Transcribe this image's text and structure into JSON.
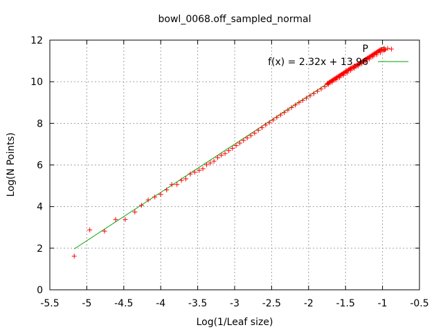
{
  "chart_data": {
    "type": "scatter",
    "title": "bowl_0068.off_sampled_normal",
    "xlabel": "Log(1/Leaf size)",
    "ylabel": "Log(N Points)",
    "xlim": [
      -5.5,
      -0.5
    ],
    "ylim": [
      0,
      12
    ],
    "xticks": [
      "-5.5",
      "-5",
      "-4.5",
      "-4",
      "-3.5",
      "-3",
      "-2.5",
      "-2",
      "-1.5",
      "-1",
      "-0.5"
    ],
    "yticks": [
      "0",
      "2",
      "4",
      "6",
      "8",
      "10",
      "12"
    ],
    "grid": true,
    "legend_position": "top-right",
    "series": [
      {
        "name": "P",
        "kind": "points",
        "marker": "plus",
        "color": "#ff0000",
        "points": [
          [
            -5.17,
            1.62
          ],
          [
            -4.96,
            2.88
          ],
          [
            -4.76,
            2.82
          ],
          [
            -4.61,
            3.38
          ],
          [
            -4.48,
            3.38
          ],
          [
            -4.35,
            3.74
          ],
          [
            -4.26,
            4.06
          ],
          [
            -4.17,
            4.32
          ],
          [
            -4.08,
            4.46
          ],
          [
            -4.0,
            4.58
          ],
          [
            -3.92,
            4.8
          ],
          [
            -3.85,
            5.06
          ],
          [
            -3.78,
            5.06
          ],
          [
            -3.72,
            5.26
          ],
          [
            -3.66,
            5.33
          ],
          [
            -3.6,
            5.56
          ],
          [
            -3.54,
            5.65
          ],
          [
            -3.48,
            5.74
          ],
          [
            -3.43,
            5.82
          ],
          [
            -3.38,
            6.01
          ],
          [
            -3.33,
            6.09
          ],
          [
            -3.28,
            6.18
          ],
          [
            -3.23,
            6.35
          ],
          [
            -3.18,
            6.47
          ],
          [
            -3.13,
            6.55
          ],
          [
            -3.08,
            6.69
          ],
          [
            -3.03,
            6.8
          ],
          [
            -2.98,
            6.93
          ],
          [
            -2.93,
            7.05
          ],
          [
            -2.88,
            7.18
          ],
          [
            -2.83,
            7.3
          ],
          [
            -2.78,
            7.41
          ],
          [
            -2.73,
            7.53
          ],
          [
            -2.68,
            7.67
          ],
          [
            -2.63,
            7.79
          ],
          [
            -2.58,
            7.92
          ],
          [
            -2.53,
            8.04
          ],
          [
            -2.48,
            8.16
          ],
          [
            -2.43,
            8.28
          ],
          [
            -2.38,
            8.4
          ],
          [
            -2.33,
            8.52
          ],
          [
            -2.28,
            8.64
          ],
          [
            -2.23,
            8.76
          ],
          [
            -2.18,
            8.88
          ],
          [
            -2.13,
            9.0
          ],
          [
            -2.08,
            9.1
          ],
          [
            -2.03,
            9.21
          ],
          [
            -1.98,
            9.32
          ],
          [
            -1.93,
            9.43
          ],
          [
            -1.88,
            9.54
          ],
          [
            -1.83,
            9.65
          ],
          [
            -1.78,
            9.76
          ],
          [
            -1.73,
            9.87
          ],
          [
            -1.68,
            9.98
          ],
          [
            -1.63,
            10.09
          ],
          [
            -1.58,
            10.2
          ],
          [
            -1.53,
            10.31
          ],
          [
            -1.48,
            10.42
          ],
          [
            -1.43,
            10.54
          ],
          [
            -1.38,
            10.65
          ],
          [
            -1.33,
            10.76
          ],
          [
            -1.28,
            10.87
          ],
          [
            -1.23,
            10.98
          ],
          [
            -1.18,
            11.09
          ],
          [
            -1.13,
            11.2
          ],
          [
            -1.08,
            11.3
          ],
          [
            -1.03,
            11.4
          ],
          [
            -0.98,
            11.5
          ],
          [
            -0.96,
            11.55
          ],
          [
            -0.88,
            11.57
          ]
        ]
      },
      {
        "name": "f(x) = 2.32x + 13.96",
        "kind": "line",
        "color": "#00a000",
        "slope": 2.32,
        "intercept": 13.96,
        "x_range": [
          -5.17,
          -0.97
        ]
      }
    ]
  }
}
